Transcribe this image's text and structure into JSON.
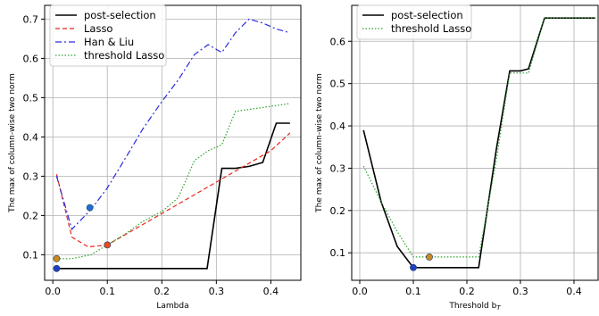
{
  "chart_data": [
    {
      "type": "line",
      "xlabel": "Lambda",
      "ylabel": "The max of column-wise two norm",
      "xlim": [
        -0.015,
        0.455
      ],
      "ylim": [
        0.035,
        0.735
      ],
      "xticks": [
        0.0,
        0.1,
        0.2,
        0.3,
        0.4
      ],
      "xtick_labels": [
        "0.0",
        "0.1",
        "0.2",
        "0.3",
        "0.4"
      ],
      "yticks": [
        0.1,
        0.2,
        0.3,
        0.4,
        0.5,
        0.6,
        0.7
      ],
      "ytick_labels": [
        "0.1",
        "0.2",
        "0.3",
        "0.4",
        "0.5",
        "0.6",
        "0.7"
      ],
      "grid": true,
      "legend": "top-left",
      "series": [
        {
          "name": "post-selection",
          "color": "#000000",
          "dash": "solid",
          "x": [
            0.007,
            0.283,
            0.31,
            0.335,
            0.36,
            0.385,
            0.41,
            0.435
          ],
          "y": [
            0.065,
            0.065,
            0.32,
            0.32,
            0.325,
            0.335,
            0.435,
            0.435
          ]
        },
        {
          "name": "Lasso",
          "color": "#e8271a",
          "dash": "dashed",
          "x": [
            0.007,
            0.035,
            0.065,
            0.1,
            0.15,
            0.2,
            0.25,
            0.3,
            0.35,
            0.4,
            0.435
          ],
          "y": [
            0.305,
            0.145,
            0.12,
            0.125,
            0.165,
            0.205,
            0.245,
            0.285,
            0.325,
            0.365,
            0.41
          ]
        },
        {
          "name": "Han & Liu",
          "color": "#2a2ae0",
          "dash": "dashdot",
          "x": [
            0.007,
            0.035,
            0.07,
            0.1,
            0.135,
            0.165,
            0.2,
            0.23,
            0.26,
            0.285,
            0.31,
            0.335,
            0.36,
            0.385,
            0.41,
            0.435
          ],
          "y": [
            0.3,
            0.165,
            0.215,
            0.27,
            0.35,
            0.42,
            0.49,
            0.545,
            0.61,
            0.635,
            0.615,
            0.665,
            0.7,
            0.69,
            0.675,
            0.665
          ]
        },
        {
          "name": "threshold Lasso",
          "color": "#2ca02c",
          "dash": "dotted",
          "x": [
            0.007,
            0.035,
            0.07,
            0.1,
            0.135,
            0.165,
            0.2,
            0.23,
            0.26,
            0.285,
            0.31,
            0.335,
            0.36,
            0.385,
            0.41,
            0.435
          ],
          "y": [
            0.09,
            0.09,
            0.1,
            0.125,
            0.155,
            0.185,
            0.21,
            0.245,
            0.34,
            0.365,
            0.38,
            0.465,
            0.47,
            0.475,
            0.48,
            0.485
          ]
        }
      ],
      "markers": [
        {
          "x": 0.007,
          "y": 0.065,
          "color": "#1f3fbf"
        },
        {
          "x": 0.007,
          "y": 0.09,
          "color": "#c98a1a"
        },
        {
          "x": 0.068,
          "y": 0.22,
          "color": "#1f6fd0"
        },
        {
          "x": 0.1,
          "y": 0.125,
          "color": "#e84a1a"
        }
      ]
    },
    {
      "type": "line",
      "xlabel": "Threshold b",
      "xlabel_sub": "T",
      "ylabel": "The max of column-wise two norm",
      "xlim": [
        -0.015,
        0.445
      ],
      "ylim": [
        0.035,
        0.685
      ],
      "xticks": [
        0.0,
        0.1,
        0.2,
        0.3,
        0.4
      ],
      "xtick_labels": [
        "0.0",
        "0.1",
        "0.2",
        "0.3",
        "0.4"
      ],
      "yticks": [
        0.1,
        0.2,
        0.3,
        0.4,
        0.5,
        0.6
      ],
      "ytick_labels": [
        "0.1",
        "0.2",
        "0.3",
        "0.4",
        "0.5",
        "0.6"
      ],
      "grid": true,
      "legend": "top-left",
      "series": [
        {
          "name": "post-selection",
          "color": "#000000",
          "dash": "solid",
          "x": [
            0.007,
            0.04,
            0.07,
            0.1,
            0.13,
            0.16,
            0.19,
            0.222,
            0.255,
            0.28,
            0.3,
            0.315,
            0.345,
            0.38,
            0.41,
            0.44
          ],
          "y": [
            0.39,
            0.22,
            0.115,
            0.065,
            0.065,
            0.065,
            0.065,
            0.065,
            0.345,
            0.53,
            0.53,
            0.535,
            0.655,
            0.655,
            0.655,
            0.655
          ]
        },
        {
          "name": "threshold Lasso",
          "color": "#2ca02c",
          "dash": "dotted",
          "x": [
            0.007,
            0.04,
            0.07,
            0.1,
            0.13,
            0.16,
            0.19,
            0.222,
            0.255,
            0.28,
            0.3,
            0.315,
            0.345,
            0.38,
            0.41,
            0.44
          ],
          "y": [
            0.305,
            0.22,
            0.15,
            0.09,
            0.09,
            0.09,
            0.09,
            0.09,
            0.32,
            0.525,
            0.525,
            0.525,
            0.655,
            0.655,
            0.655,
            0.655
          ]
        }
      ],
      "markers": [
        {
          "x": 0.1,
          "y": 0.065,
          "color": "#1f3fbf"
        },
        {
          "x": 0.13,
          "y": 0.09,
          "color": "#c98a1a"
        }
      ]
    }
  ]
}
